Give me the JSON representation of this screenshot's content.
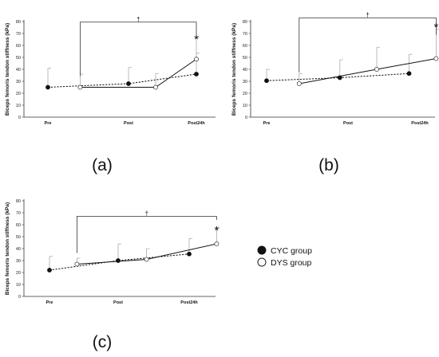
{
  "chart_data": [
    {
      "panel_label": "(a)",
      "type": "line",
      "categories": [
        "Pre",
        "Post",
        "Post24h"
      ],
      "ylabel": "Biceps femoris tendon stiffness (kPa)",
      "ylim": [
        0,
        80
      ],
      "yticks": [
        0,
        10,
        20,
        30,
        40,
        50,
        60,
        70,
        80
      ],
      "grid": false,
      "series": [
        {
          "group": "CYC",
          "style": "dashed",
          "marker": "filled",
          "x": [
            0,
            1,
            2
          ],
          "values": [
            25,
            28,
            36
          ],
          "error": [
            16,
            13.5,
            17.5
          ]
        },
        {
          "group": "DYS",
          "style": "solid",
          "marker": "open",
          "x": [
            0.4,
            1.4,
            2
          ],
          "values": [
            25,
            25,
            48.5
          ],
          "error": [
            11,
            11.5,
            18.5
          ]
        }
      ],
      "bracket": {
        "from": 0.4,
        "to": 2,
        "y": 79.5,
        "label": "†"
      },
      "annotations": [
        {
          "text": "*",
          "at": 2,
          "y": 66
        }
      ]
    },
    {
      "panel_label": "(b)",
      "type": "line",
      "categories": [
        "Pre",
        "Post",
        "Post24h"
      ],
      "ylabel": "Biceps femoris tendon stiffness (kPa)",
      "ylim": [
        0,
        80
      ],
      "yticks": [
        0,
        10,
        20,
        30,
        40,
        50,
        60,
        70,
        80
      ],
      "grid": false,
      "series": [
        {
          "group": "CYC",
          "style": "dashed",
          "marker": "filled",
          "x": [
            0,
            0.9,
            1.85
          ],
          "values": [
            30.5,
            33,
            36.5
          ],
          "error": [
            9.5,
            15,
            16
          ]
        },
        {
          "group": "DYS",
          "style": "solid",
          "marker": "open",
          "x": [
            0.4,
            1.4,
            2.2
          ],
          "values": [
            28,
            40,
            49
          ],
          "error": [
            8.5,
            18.5,
            24.5
          ]
        }
      ],
      "bracket": {
        "from": 0.4,
        "to": 2.2,
        "y": 83,
        "label": "†"
      },
      "annotations": [
        {
          "text": "*",
          "at": 2.2,
          "y": 76
        }
      ]
    },
    {
      "panel_label": "(c)",
      "type": "line",
      "categories": [
        "Pre",
        "Post",
        "Post24h"
      ],
      "ylabel": "Biceps femoris tendon stiffness (kPa)",
      "ylim": [
        0,
        80
      ],
      "yticks": [
        0,
        10,
        20,
        30,
        40,
        50,
        60,
        70,
        80
      ],
      "grid": false,
      "series": [
        {
          "group": "CYC",
          "style": "dashed",
          "marker": "filled",
          "x": [
            0,
            1,
            2
          ],
          "values": [
            22,
            30,
            35.5
          ],
          "error": [
            11.5,
            14,
            13
          ]
        },
        {
          "group": "DYS",
          "style": "solid",
          "marker": "open",
          "x": [
            0.4,
            1.4,
            2.4
          ],
          "values": [
            27,
            31,
            44
          ],
          "error": [
            5,
            9,
            13.5
          ]
        }
      ],
      "bracket": {
        "from": 0.4,
        "to": 2.4,
        "y": 67,
        "label": "†"
      },
      "annotations": [
        {
          "text": "*",
          "at": 2.4,
          "y": 56
        }
      ]
    }
  ],
  "legend": {
    "position": "right",
    "items": [
      {
        "label": "CYC group",
        "marker": "filled"
      },
      {
        "label": "DYS group",
        "marker": "open"
      }
    ]
  },
  "colors": {
    "line": "#111111",
    "error_bar": "#aaaaaa",
    "open_marker_fill": "#ffffff"
  }
}
